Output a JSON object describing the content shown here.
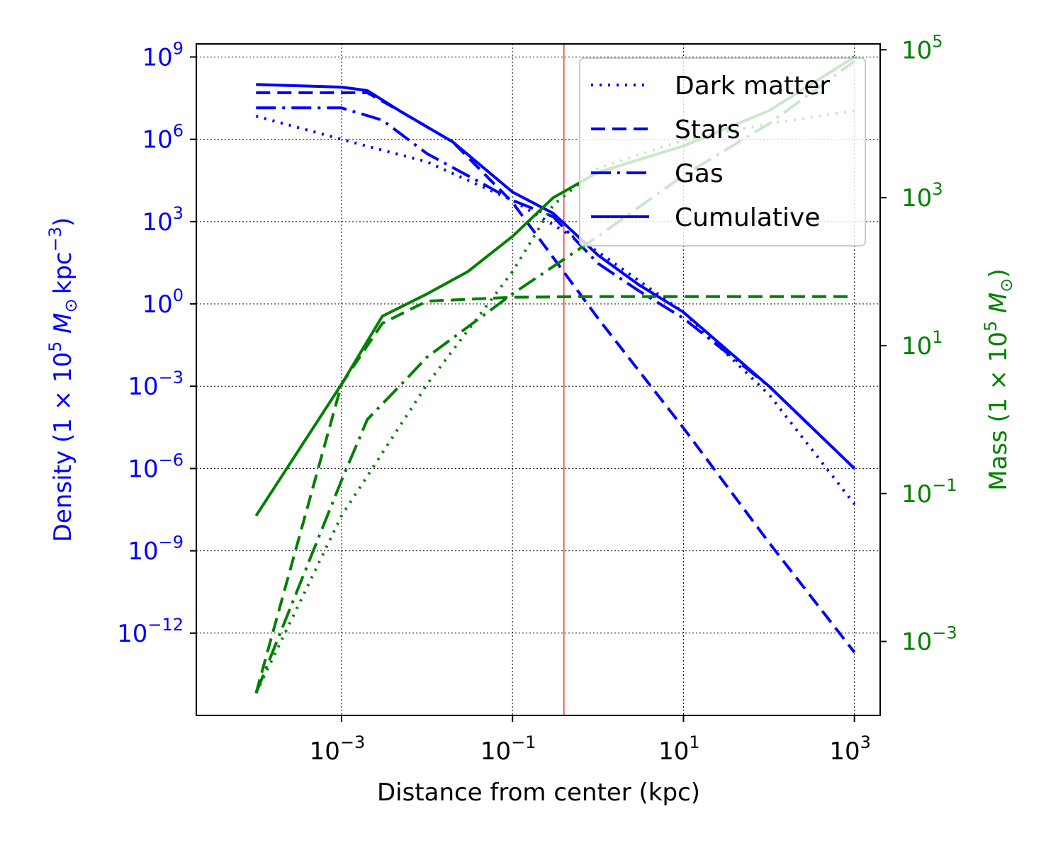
{
  "chart_data": {
    "type": "line",
    "xlabel": "Distance from center (kpc)",
    "xscale": "log",
    "xlim": [
      2e-05,
      2000
    ],
    "x_ticks": [
      {
        "value": 0.001,
        "base": "10",
        "exp": "−3"
      },
      {
        "value": 0.1,
        "base": "10",
        "exp": "−1"
      },
      {
        "value": 10,
        "base": "10",
        "exp": "1"
      },
      {
        "value": 1000,
        "base": "10",
        "exp": "3"
      }
    ],
    "grid": true,
    "legend": {
      "position": "top-right",
      "entries": [
        {
          "label": "Dark matter",
          "dash": "dotted"
        },
        {
          "label": "Stars",
          "dash": "dashed"
        },
        {
          "label": "Gas",
          "dash": "dashdot"
        },
        {
          "label": "Cumulative",
          "dash": "solid"
        }
      ]
    },
    "vertical_line": {
      "x": 0.4,
      "color": "#ff0000"
    },
    "left_axis": {
      "ylabel": {
        "prefix": "Density (1 × 10",
        "sup1": "5",
        "mid": " M",
        "sub": "⊙",
        "unit": "kpc",
        "sup2": "−3",
        "suffix": ")"
      },
      "color": "#0000ff",
      "yscale": "log",
      "ylim": [
        1e-15,
        3000000000.0
      ],
      "y_ticks": [
        {
          "value": 1000000000.0,
          "base": "10",
          "exp": "9"
        },
        {
          "value": 1000000.0,
          "base": "10",
          "exp": "6"
        },
        {
          "value": 1000.0,
          "base": "10",
          "exp": "3"
        },
        {
          "value": 1,
          "base": "10",
          "exp": "0"
        },
        {
          "value": 0.001,
          "base": "10",
          "exp": "−3"
        },
        {
          "value": 1e-06,
          "base": "10",
          "exp": "−6"
        },
        {
          "value": 1e-09,
          "base": "10",
          "exp": "−9"
        },
        {
          "value": 1e-12,
          "base": "10",
          "exp": "−12"
        }
      ],
      "series": [
        {
          "label": "Dark matter",
          "dash": "dotted",
          "points": [
            [
              0.0001,
              7000000.0
            ],
            [
              0.001,
              1000000.0
            ],
            [
              0.01,
              150000.0
            ],
            [
              0.1,
              6000.0
            ],
            [
              1,
              80
            ],
            [
              10,
              0.5
            ],
            [
              100,
              0.0005
            ],
            [
              1000,
              5e-08
            ]
          ]
        },
        {
          "label": "Stars",
          "dash": "dashed",
          "points": [
            [
              0.0001,
              50000000.0
            ],
            [
              0.002,
              50000000.0
            ],
            [
              0.005,
              10000000.0
            ],
            [
              0.02,
              800000.0
            ],
            [
              0.1,
              5000.0
            ],
            [
              1,
              0.3
            ],
            [
              10,
              3e-05
            ],
            [
              100,
              2e-09
            ],
            [
              1000,
              2e-13
            ]
          ]
        },
        {
          "label": "Gas",
          "dash": "dashdot",
          "points": [
            [
              0.0001,
              14000000.0
            ],
            [
              0.001,
              14000000.0
            ],
            [
              0.003,
              5000000.0
            ],
            [
              0.01,
              300000.0
            ],
            [
              0.05,
              20000.0
            ],
            [
              0.1,
              6000.0
            ],
            [
              0.3,
              1500.0
            ],
            [
              1,
              30
            ],
            [
              3,
              3
            ],
            [
              10,
              0.3
            ],
            [
              100,
              0.001
            ],
            [
              1000,
              1e-06
            ]
          ]
        },
        {
          "label": "Cumulative",
          "dash": "solid",
          "points": [
            [
              0.0001,
              100000000.0
            ],
            [
              0.001,
              80000000.0
            ],
            [
              0.002,
              60000000.0
            ],
            [
              0.005,
              10000000.0
            ],
            [
              0.02,
              800000.0
            ],
            [
              0.1,
              12000.0
            ],
            [
              0.3,
              2000.0
            ],
            [
              1,
              60
            ],
            [
              3,
              5
            ],
            [
              10,
              0.5
            ],
            [
              100,
              0.001
            ],
            [
              1000,
              1e-06
            ]
          ]
        }
      ]
    },
    "right_axis": {
      "ylabel": {
        "prefix": "Mass (1 × 10",
        "sup1": "5",
        "mid": " M",
        "sub": "⊙",
        "suffix": ")"
      },
      "color": "#008000",
      "yscale": "log",
      "ylim": [
        0.0001,
        120000
      ],
      "y_ticks": [
        {
          "value": 100000,
          "base": "10",
          "exp": "5"
        },
        {
          "value": 1000,
          "base": "10",
          "exp": "3"
        },
        {
          "value": 10,
          "base": "10",
          "exp": "1"
        },
        {
          "value": 0.1,
          "base": "10",
          "exp": "−1"
        },
        {
          "value": 0.001,
          "base": "10",
          "exp": "−3"
        }
      ],
      "series": [
        {
          "label": "Dark matter",
          "dash": "dotted",
          "points": [
            [
              0.0001,
              0.0002
            ],
            [
              0.001,
              0.05
            ],
            [
              0.01,
              3
            ],
            [
              0.1,
              100
            ],
            [
              0.3,
              800
            ],
            [
              1,
              2500
            ],
            [
              10,
              6000
            ],
            [
              100,
              10000
            ],
            [
              1000,
              15000
            ]
          ]
        },
        {
          "label": "Stars",
          "dash": "dashed",
          "points": [
            [
              0.0001,
              0.0002
            ],
            [
              0.001,
              3
            ],
            [
              0.003,
              20
            ],
            [
              0.01,
              40
            ],
            [
              0.1,
              45
            ],
            [
              1,
              46
            ],
            [
              1000,
              46
            ]
          ]
        },
        {
          "label": "Gas",
          "dash": "dashdot",
          "points": [
            [
              0.0001,
              0.0002
            ],
            [
              0.001,
              0.15
            ],
            [
              0.002,
              1
            ],
            [
              0.005,
              3
            ],
            [
              0.01,
              7
            ],
            [
              0.1,
              50
            ],
            [
              1,
              300
            ],
            [
              10,
              2000
            ],
            [
              100,
              10000
            ],
            [
              1000,
              70000
            ]
          ]
        },
        {
          "label": "Cumulative",
          "dash": "solid",
          "points": [
            [
              0.0001,
              0.05
            ],
            [
              0.001,
              3
            ],
            [
              0.003,
              25
            ],
            [
              0.01,
              50
            ],
            [
              0.03,
              100
            ],
            [
              0.1,
              300
            ],
            [
              0.3,
              1000
            ],
            [
              1,
              2200
            ],
            [
              10,
              5000
            ],
            [
              100,
              15000
            ],
            [
              1000,
              80000
            ]
          ]
        }
      ]
    }
  }
}
